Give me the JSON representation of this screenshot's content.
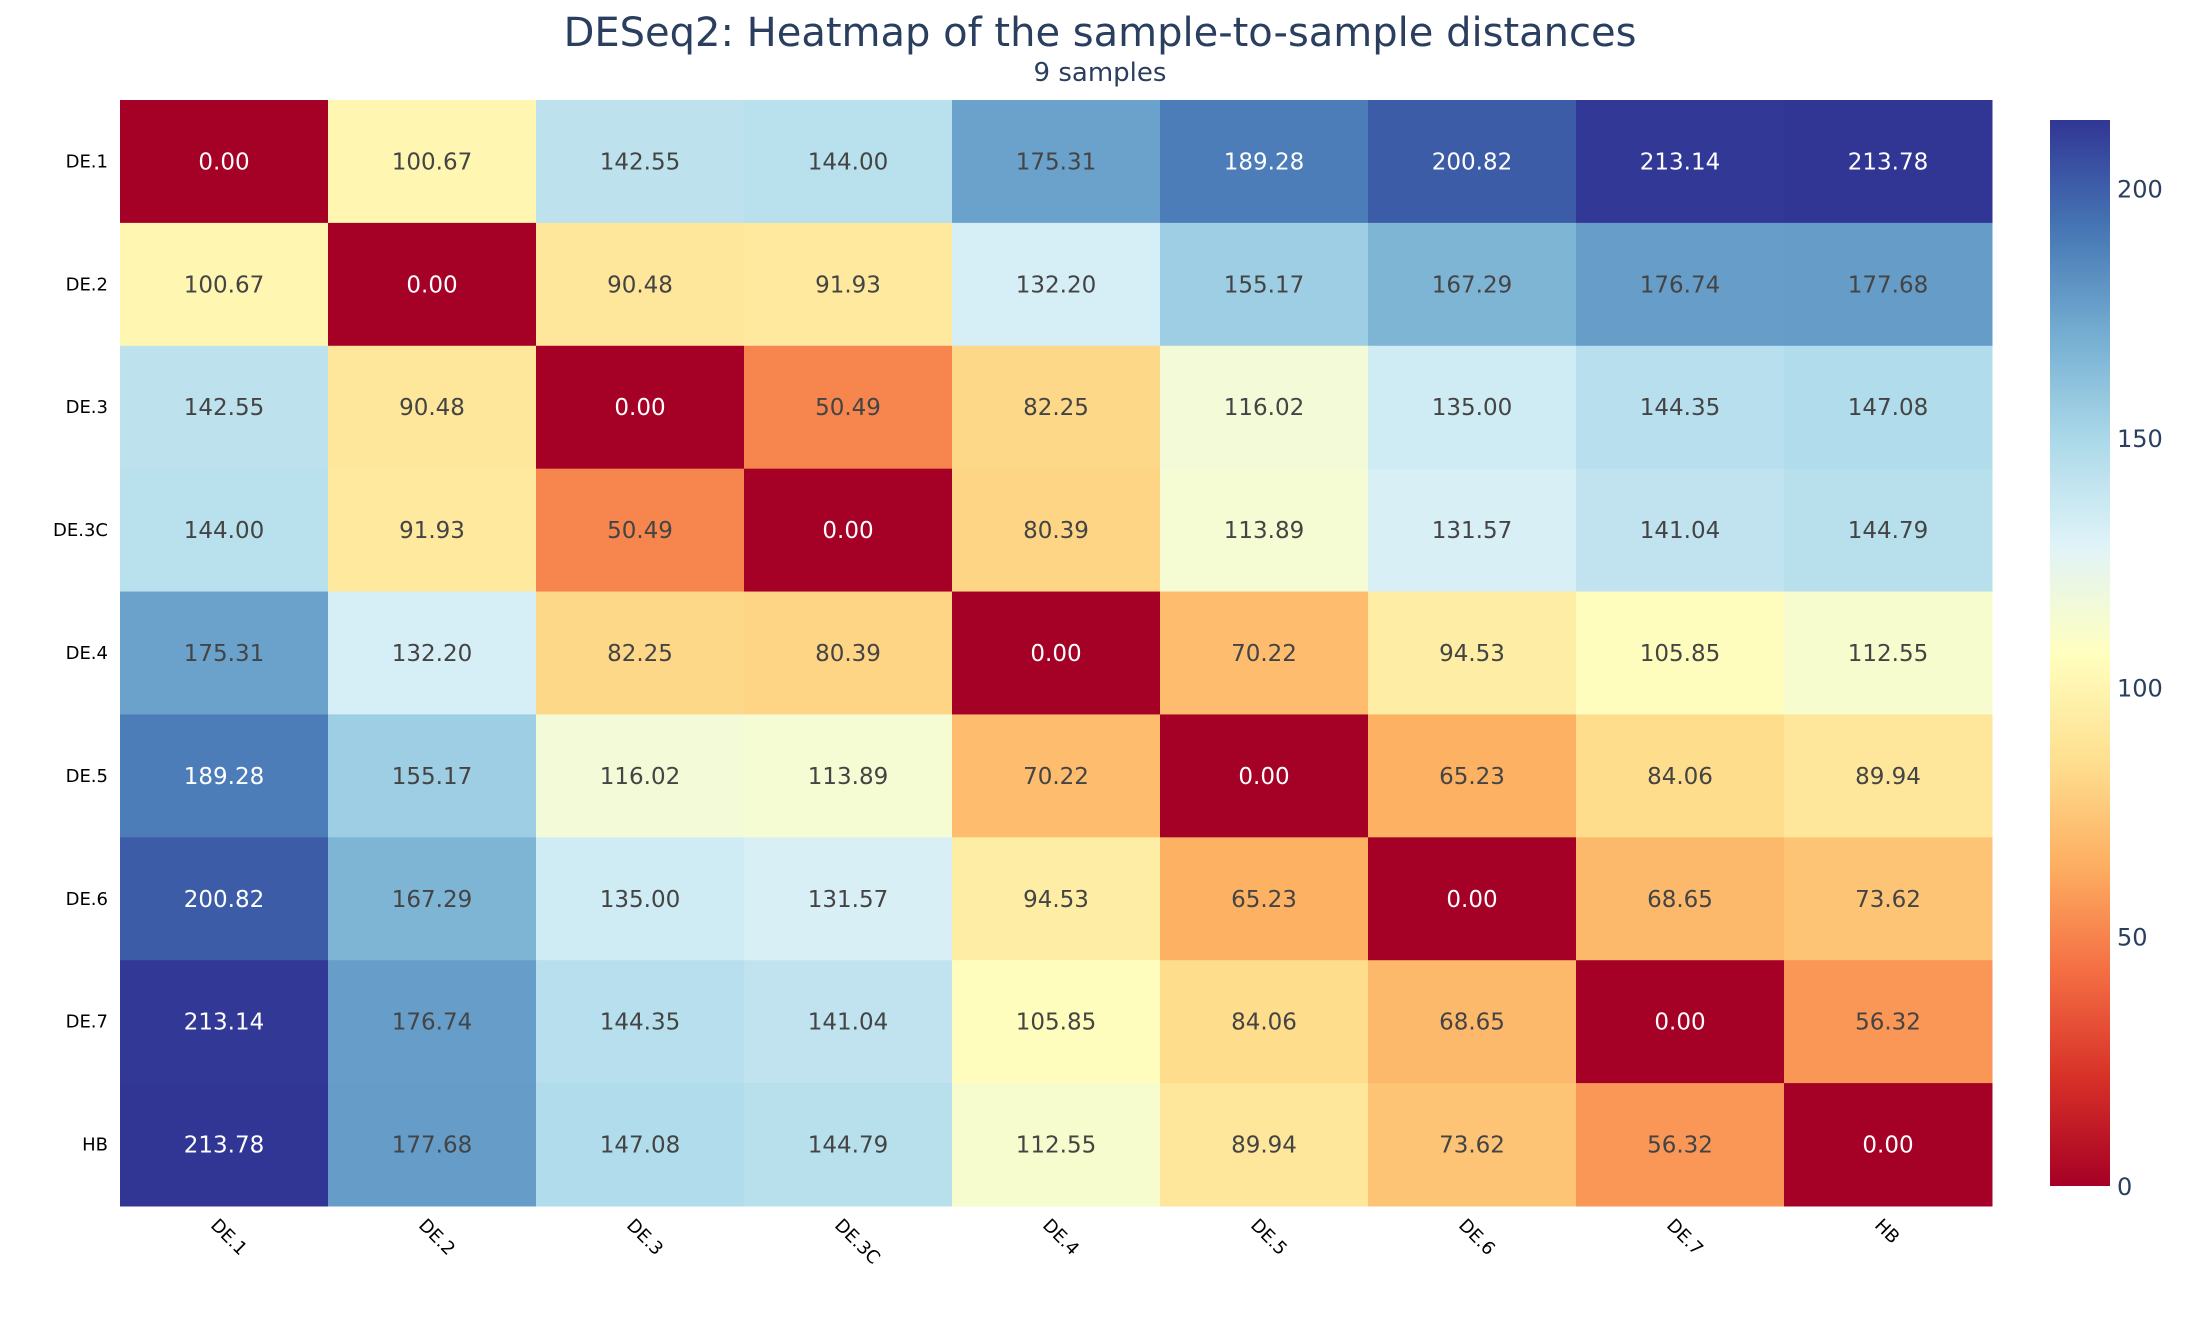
{
  "chart_data": {
    "type": "heatmap",
    "title": "DESeq2: Heatmap of the sample-to-sample distances",
    "subtitle": "9 samples",
    "xlabel": "",
    "ylabel": "",
    "x": [
      "DE.1",
      "DE.2",
      "DE.3",
      "DE.3C",
      "DE.4",
      "DE.5",
      "DE.6",
      "DE.7",
      "HB"
    ],
    "y": [
      "DE.1",
      "DE.2",
      "DE.3",
      "DE.3C",
      "DE.4",
      "DE.5",
      "DE.6",
      "DE.7",
      "HB"
    ],
    "z": [
      [
        0.0,
        100.67,
        142.55,
        144.0,
        175.31,
        189.28,
        200.82,
        213.14,
        213.78
      ],
      [
        100.67,
        0.0,
        90.48,
        91.93,
        132.2,
        155.17,
        167.29,
        176.74,
        177.68
      ],
      [
        142.55,
        90.48,
        0.0,
        50.49,
        82.25,
        116.02,
        135.0,
        144.35,
        147.08
      ],
      [
        144.0,
        91.93,
        50.49,
        0.0,
        80.39,
        113.89,
        131.57,
        141.04,
        144.79
      ],
      [
        175.31,
        132.2,
        82.25,
        80.39,
        0.0,
        70.22,
        94.53,
        105.85,
        112.55
      ],
      [
        189.28,
        155.17,
        116.02,
        113.89,
        70.22,
        0.0,
        65.23,
        84.06,
        89.94
      ],
      [
        200.82,
        167.29,
        135.0,
        131.57,
        94.53,
        65.23,
        0.0,
        68.65,
        73.62
      ],
      [
        213.14,
        176.74,
        144.35,
        141.04,
        105.85,
        84.06,
        68.65,
        0.0,
        56.32
      ],
      [
        213.78,
        177.68,
        147.08,
        144.79,
        112.55,
        89.94,
        73.62,
        56.32,
        0.0
      ]
    ],
    "value_format": "2 decimals",
    "colorscale": "RdYlBu",
    "colorscale_stops": [
      "#a50026",
      "#d73027",
      "#f46d43",
      "#fdae61",
      "#fee090",
      "#ffffbf",
      "#e0f3f8",
      "#abd9e9",
      "#74add1",
      "#4575b4",
      "#313695"
    ],
    "zrange": [
      0,
      213.78
    ],
    "colorbar": {
      "ticks": [
        0,
        50,
        100,
        150,
        200
      ],
      "tick_labels": [
        "0",
        "50",
        "100",
        "150",
        "200"
      ],
      "placement": "right"
    },
    "text_colors": {
      "light": "#ffffff",
      "dark": "#444444"
    },
    "grid": false,
    "x_tick_rotation_deg": 45
  }
}
